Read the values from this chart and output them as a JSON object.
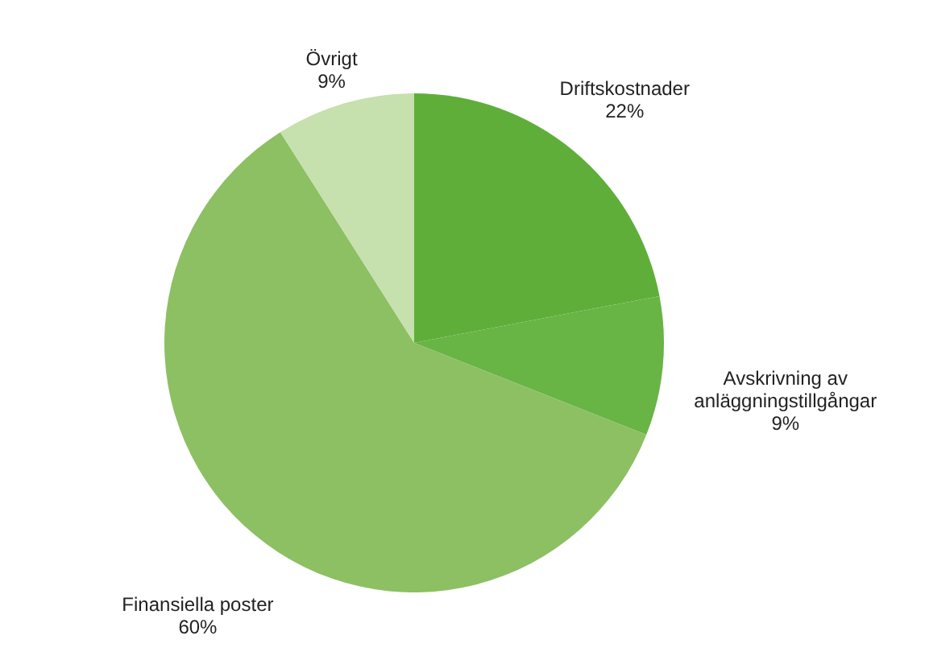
{
  "chart_data": {
    "type": "pie",
    "categories": [
      "Driftskostnader",
      "Avskrivning av anläggningstillgångar",
      "Finansiella poster",
      "Övrigt"
    ],
    "values": [
      22,
      9,
      60,
      9
    ],
    "colors": [
      "#5fae3a",
      "#68b445",
      "#8cc063",
      "#c6e0ae"
    ],
    "value_labels": [
      "22%",
      "9%",
      "60%",
      "9%"
    ]
  }
}
